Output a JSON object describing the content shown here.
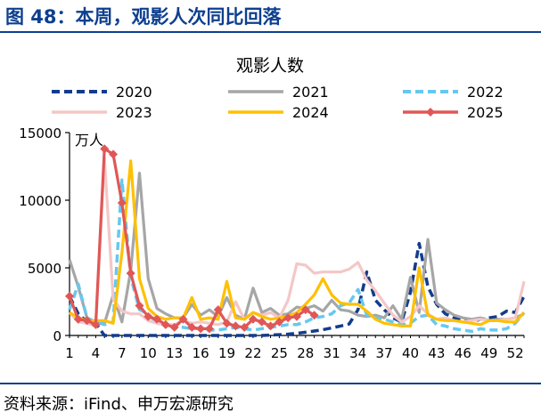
{
  "figure": {
    "title": "图 48：本周，观影人次同比回落",
    "source": "资料来源：iFind、申万宏源研究",
    "accent_color": "#0d3f8f"
  },
  "chart_data": {
    "type": "line",
    "title": "观影人数",
    "unit": "万人",
    "xlabel": "",
    "ylabel": "",
    "ylim": [
      0,
      15000
    ],
    "xlim": [
      1,
      53
    ],
    "y_ticks": [
      0,
      5000,
      10000,
      15000
    ],
    "x_ticks": [
      1,
      4,
      7,
      10,
      13,
      16,
      19,
      22,
      25,
      28,
      31,
      34,
      37,
      40,
      43,
      46,
      49,
      52
    ],
    "grid": false,
    "legend_position": "top",
    "series": [
      {
        "name": "2020",
        "color": "#123c8c",
        "dash": "dash",
        "x": [
          1,
          2,
          3,
          4,
          5,
          6,
          7,
          8,
          9,
          10,
          11,
          12,
          13,
          14,
          15,
          16,
          17,
          18,
          19,
          20,
          21,
          22,
          23,
          24,
          25,
          26,
          27,
          28,
          29,
          30,
          31,
          32,
          33,
          34,
          35,
          36,
          37,
          38,
          39,
          40,
          41,
          42,
          43,
          44,
          45,
          46,
          47,
          48,
          49,
          50,
          51,
          52,
          53
        ],
        "values": [
          2900,
          1600,
          1000,
          900,
          0,
          0,
          0,
          0,
          0,
          0,
          0,
          0,
          0,
          0,
          0,
          0,
          0,
          0,
          0,
          0,
          0,
          0,
          0,
          30,
          60,
          100,
          160,
          240,
          330,
          430,
          560,
          700,
          850,
          1900,
          4700,
          2600,
          1900,
          1300,
          1000,
          3200,
          6800,
          3600,
          2300,
          1600,
          1300,
          1100,
          1000,
          1200,
          1300,
          1400,
          1800,
          1700,
          2900
        ]
      },
      {
        "name": "2021",
        "color": "#a6a6a6",
        "dash": "solid",
        "x": [
          1,
          2,
          3,
          4,
          5,
          6,
          7,
          8,
          9,
          10,
          11,
          12,
          13,
          14,
          15,
          16,
          17,
          18,
          19,
          20,
          21,
          22,
          23,
          24,
          25,
          26,
          27,
          28,
          29,
          30,
          31,
          32,
          33,
          34,
          35,
          36,
          37,
          38,
          39,
          40,
          41,
          42,
          43,
          44,
          45,
          46,
          47,
          48,
          49,
          50,
          51,
          52,
          53
        ],
        "values": [
          5600,
          3600,
          1300,
          1000,
          900,
          3000,
          1000,
          4800,
          12000,
          4200,
          2000,
          1600,
          1300,
          1300,
          2300,
          1500,
          1900,
          1400,
          2800,
          1500,
          1200,
          3500,
          1700,
          2000,
          1500,
          1600,
          2100,
          2000,
          2200,
          1800,
          2600,
          1900,
          1800,
          1500,
          1400,
          1500,
          1300,
          2200,
          1200,
          4300,
          1700,
          7100,
          2400,
          1900,
          1500,
          1300,
          1200,
          1300,
          1100,
          1200,
          1200,
          1300,
          1600
        ]
      },
      {
        "name": "2022",
        "color": "#66c8f0",
        "dash": "dash",
        "x": [
          1,
          2,
          3,
          4,
          5,
          6,
          7,
          8,
          9,
          10,
          11,
          12,
          13,
          14,
          15,
          16,
          17,
          18,
          19,
          20,
          21,
          22,
          23,
          24,
          25,
          26,
          27,
          28,
          29,
          30,
          31,
          32,
          33,
          34,
          35,
          36,
          37,
          38,
          39,
          40,
          41,
          42,
          43,
          44,
          45,
          46,
          47,
          48,
          49,
          50,
          51,
          52,
          53
        ],
        "values": [
          1900,
          3800,
          1300,
          1000,
          800,
          1000,
          11500,
          4300,
          1900,
          1600,
          900,
          800,
          700,
          600,
          500,
          500,
          400,
          400,
          500,
          600,
          500,
          400,
          500,
          600,
          700,
          800,
          800,
          1000,
          1300,
          1400,
          1600,
          2200,
          2400,
          3400,
          1500,
          1300,
          1200,
          1000,
          800,
          900,
          1400,
          1500,
          800,
          700,
          500,
          400,
          300,
          500,
          400,
          400,
          500,
          900,
          1700
        ]
      },
      {
        "name": "2023",
        "color": "#f4c7c7",
        "dash": "solid",
        "x": [
          1,
          2,
          3,
          4,
          5,
          6,
          7,
          8,
          9,
          10,
          11,
          12,
          13,
          14,
          15,
          16,
          17,
          18,
          19,
          20,
          21,
          22,
          23,
          24,
          25,
          26,
          27,
          28,
          29,
          30,
          31,
          32,
          33,
          34,
          35,
          36,
          37,
          38,
          39,
          40,
          41,
          42,
          43,
          44,
          45,
          46,
          47,
          48,
          49,
          50,
          51,
          52,
          53
        ],
        "values": [
          1700,
          1000,
          900,
          700,
          13100,
          2700,
          1800,
          1600,
          1600,
          1100,
          900,
          800,
          800,
          1100,
          900,
          1000,
          900,
          800,
          1000,
          2500,
          1200,
          1700,
          1500,
          1700,
          1300,
          2600,
          5300,
          5200,
          4600,
          4700,
          4700,
          4700,
          4900,
          5400,
          4100,
          3300,
          2400,
          1500,
          1000,
          1400,
          2200,
          1600,
          1200,
          1300,
          1100,
          1000,
          1100,
          1200,
          1100,
          1100,
          1200,
          1300,
          4000
        ]
      },
      {
        "name": "2024",
        "color": "#ffc000",
        "dash": "solid",
        "x": [
          1,
          2,
          3,
          4,
          5,
          6,
          7,
          8,
          9,
          10,
          11,
          12,
          13,
          14,
          15,
          16,
          17,
          18,
          19,
          20,
          21,
          22,
          23,
          24,
          25,
          26,
          27,
          28,
          29,
          30,
          31,
          32,
          33,
          34,
          35,
          36,
          37,
          38,
          39,
          40,
          41,
          42,
          43,
          44,
          45,
          46,
          47,
          48,
          49,
          50,
          51,
          52,
          53
        ],
        "values": [
          1700,
          1300,
          1100,
          1100,
          1100,
          900,
          6100,
          12900,
          4200,
          2000,
          1400,
          1200,
          1300,
          1300,
          2800,
          1200,
          1300,
          1200,
          4000,
          1300,
          1200,
          1700,
          1400,
          1200,
          1300,
          1400,
          1700,
          2300,
          3000,
          4200,
          3000,
          2400,
          2300,
          2300,
          1800,
          1200,
          900,
          800,
          700,
          700,
          5000,
          1500,
          1200,
          1100,
          1100,
          1000,
          900,
          800,
          1100,
          1100,
          1000,
          1000,
          1700
        ]
      },
      {
        "name": "2025",
        "color": "#e05757",
        "dash": "solid",
        "marker": "diamond",
        "x": [
          1,
          2,
          3,
          4,
          5,
          6,
          7,
          8,
          9,
          10,
          11,
          12,
          13,
          14,
          15,
          16,
          17,
          18,
          19,
          20,
          21,
          22,
          23,
          24,
          25,
          26,
          27,
          28,
          29
        ],
        "values": [
          2900,
          1200,
          1100,
          800,
          13800,
          13400,
          9800,
          4600,
          2200,
          1400,
          1200,
          800,
          600,
          1200,
          600,
          500,
          500,
          1900,
          900,
          700,
          600,
          1200,
          1000,
          700,
          1000,
          1300,
          1400,
          1900,
          1500
        ]
      }
    ]
  }
}
